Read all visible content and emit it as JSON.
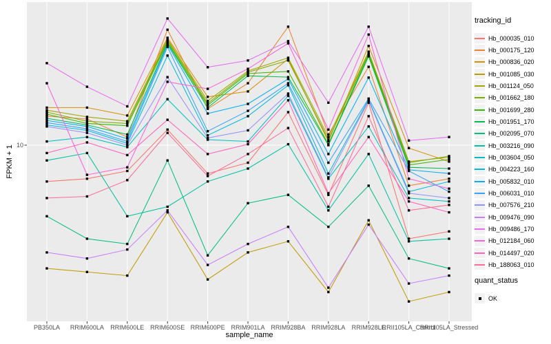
{
  "figure": {
    "x_axis": {
      "title": "sample_name",
      "categories": [
        "PB350LA",
        "RRIM600LA",
        "RRIM600LE",
        "RRIM600SE",
        "RRIM600PE",
        "RRIM901LA",
        "RRIM928BA",
        "RRIM928LA",
        "RRIM928LE",
        "RRII105LA_Control",
        "RRII105LA_Stressed"
      ]
    },
    "y_axis": {
      "title": "FPKM + 1",
      "tick_labels": [
        "10"
      ]
    },
    "legend_tracking_title": "tracking_id",
    "legend_quant_title": "quant_status",
    "legend_quant_items": [
      "OK"
    ]
  },
  "chart_data": {
    "type": "line",
    "title": "",
    "xlabel": "sample_name",
    "ylabel": "FPKM + 1",
    "y_scale": "log10",
    "y_breaks": [
      10
    ],
    "ylim": [
      1.55,
      45.5
    ],
    "grid": "major-on-gray-panel",
    "panel_bg": "#EBEBEB",
    "grid_color": "#FFFFFF",
    "point_marker": "black-filled-square",
    "point_legend_title": "quant_status",
    "point_legend_items": [
      "OK"
    ],
    "legend_title": "tracking_id",
    "legend_position": "right",
    "categories": [
      "PB350LA",
      "RRIM600LA",
      "RRIM600LE",
      "RRIM600SE",
      "RRIM600PE",
      "RRIM901LA",
      "RRIM928BA",
      "RRIM928LA",
      "RRIM928LE",
      "RRII105LA_Control",
      "RRII105LA_Stressed"
    ],
    "series": [
      {
        "name": "Hb_000035_010",
        "color": "#F8766D",
        "values": [
          6.8,
          7.0,
          7.6,
          11.8,
          7.4,
          8.3,
          14.2,
          5.9,
          15.7,
          3.7,
          4.0
        ]
      },
      {
        "name": "Hb_000175_120",
        "color": "#EA8331",
        "values": [
          13.6,
          13.2,
          10.9,
          34.1,
          14.7,
          19.3,
          35.2,
          11.2,
          23.0,
          6.5,
          7.0
        ]
      },
      {
        "name": "Hb_000836_020",
        "color": "#D89000",
        "values": [
          14.9,
          14.9,
          13.7,
          31.3,
          16.7,
          17.7,
          25.0,
          10.4,
          28.7,
          9.7,
          8.4
        ]
      },
      {
        "name": "Hb_001085_030",
        "color": "#C09B00",
        "values": [
          2.7,
          2.6,
          2.5,
          4.9,
          2.4,
          3.2,
          3.6,
          2.1,
          4.5,
          1.9,
          2.1
        ]
      },
      {
        "name": "Hb_001124_050",
        "color": "#A3A500",
        "values": [
          14.5,
          13.5,
          12.9,
          30.8,
          16.0,
          22.0,
          25.3,
          10.9,
          27.0,
          8.4,
          8.8
        ]
      },
      {
        "name": "Hb_001662_180",
        "color": "#7CAE00",
        "values": [
          14.2,
          12.9,
          12.6,
          30.4,
          15.6,
          21.7,
          24.6,
          10.6,
          26.6,
          8.3,
          8.9
        ]
      },
      {
        "name": "Hb_001699_280",
        "color": "#39B600",
        "values": [
          13.9,
          12.6,
          12.3,
          29.9,
          15.3,
          21.4,
          21.9,
          10.1,
          26.2,
          8.1,
          8.6
        ]
      },
      {
        "name": "Hb_001951_170",
        "color": "#00BB4E",
        "values": [
          13.3,
          12.4,
          11.2,
          29.5,
          14.9,
          20.9,
          20.6,
          10.0,
          25.7,
          7.9,
          7.8
        ]
      },
      {
        "name": "Hb_002095_070",
        "color": "#00BF7D",
        "values": [
          4.7,
          3.7,
          3.5,
          8.5,
          3.1,
          5.4,
          5.9,
          4.2,
          6.5,
          3.0,
          2.7
        ]
      },
      {
        "name": "Hb_003216_090",
        "color": "#00C1A3",
        "values": [
          8.5,
          9.2,
          4.7,
          5.2,
          6.8,
          7.8,
          10.1,
          5.0,
          9.1,
          3.6,
          3.7
        ]
      },
      {
        "name": "Hb_003604_050",
        "color": "#00BFC4",
        "values": [
          10.4,
          10.9,
          9.8,
          16.3,
          10.6,
          10.4,
          16.9,
          7.0,
          12.2,
          5.7,
          5.5
        ]
      },
      {
        "name": "Hb_004223_160",
        "color": "#00BADE",
        "values": [
          12.4,
          11.7,
          10.2,
          25.9,
          11.1,
          13.6,
          18.9,
          7.4,
          16.2,
          6.1,
          6.8
        ]
      },
      {
        "name": "Hb_005832_010",
        "color": "#00B0F6",
        "values": [
          13.0,
          12.2,
          10.7,
          29.1,
          14.0,
          15.5,
          20.2,
          9.1,
          20.5,
          7.7,
          7.4
        ]
      },
      {
        "name": "Hb_006031_010",
        "color": "#35A2FF",
        "values": [
          12.7,
          11.9,
          10.4,
          28.4,
          11.6,
          14.4,
          19.3,
          8.3,
          16.4,
          7.6,
          6.1
        ]
      },
      {
        "name": "Hb_007576_210",
        "color": "#9590FF",
        "values": [
          12.2,
          11.4,
          10.0,
          20.6,
          10.8,
          11.7,
          17.3,
          7.1,
          16.0,
          6.0,
          5.7
        ]
      },
      {
        "name": "Hb_009476_090",
        "color": "#C77CFF",
        "values": [
          3.2,
          3.0,
          3.3,
          5.0,
          2.8,
          3.5,
          4.2,
          2.2,
          4.3,
          2.3,
          2.5
        ]
      },
      {
        "name": "Hb_009486_170",
        "color": "#E76BF3",
        "values": [
          23.9,
          18.6,
          15.1,
          38.4,
          22.9,
          24.6,
          30.2,
          15.7,
          35.2,
          10.5,
          10.9
        ]
      },
      {
        "name": "Hb_012184_060",
        "color": "#FA62DB",
        "values": [
          19.3,
          7.3,
          7.9,
          19.6,
          18.2,
          22.5,
          29.5,
          11.8,
          32.4,
          7.0,
          6.3
        ]
      },
      {
        "name": "Hb_014497_020",
        "color": "#FF62BC",
        "values": [
          9.2,
          10.3,
          9.0,
          13.1,
          9.1,
          10.1,
          16.1,
          6.0,
          10.9,
          5.5,
          4.9
        ]
      },
      {
        "name": "Hb_188063_010",
        "color": "#FF6A98",
        "values": [
          5.7,
          5.8,
          6.9,
          11.4,
          7.2,
          9.1,
          12.0,
          5.2,
          13.6,
          5.0,
          5.3
        ]
      }
    ]
  }
}
